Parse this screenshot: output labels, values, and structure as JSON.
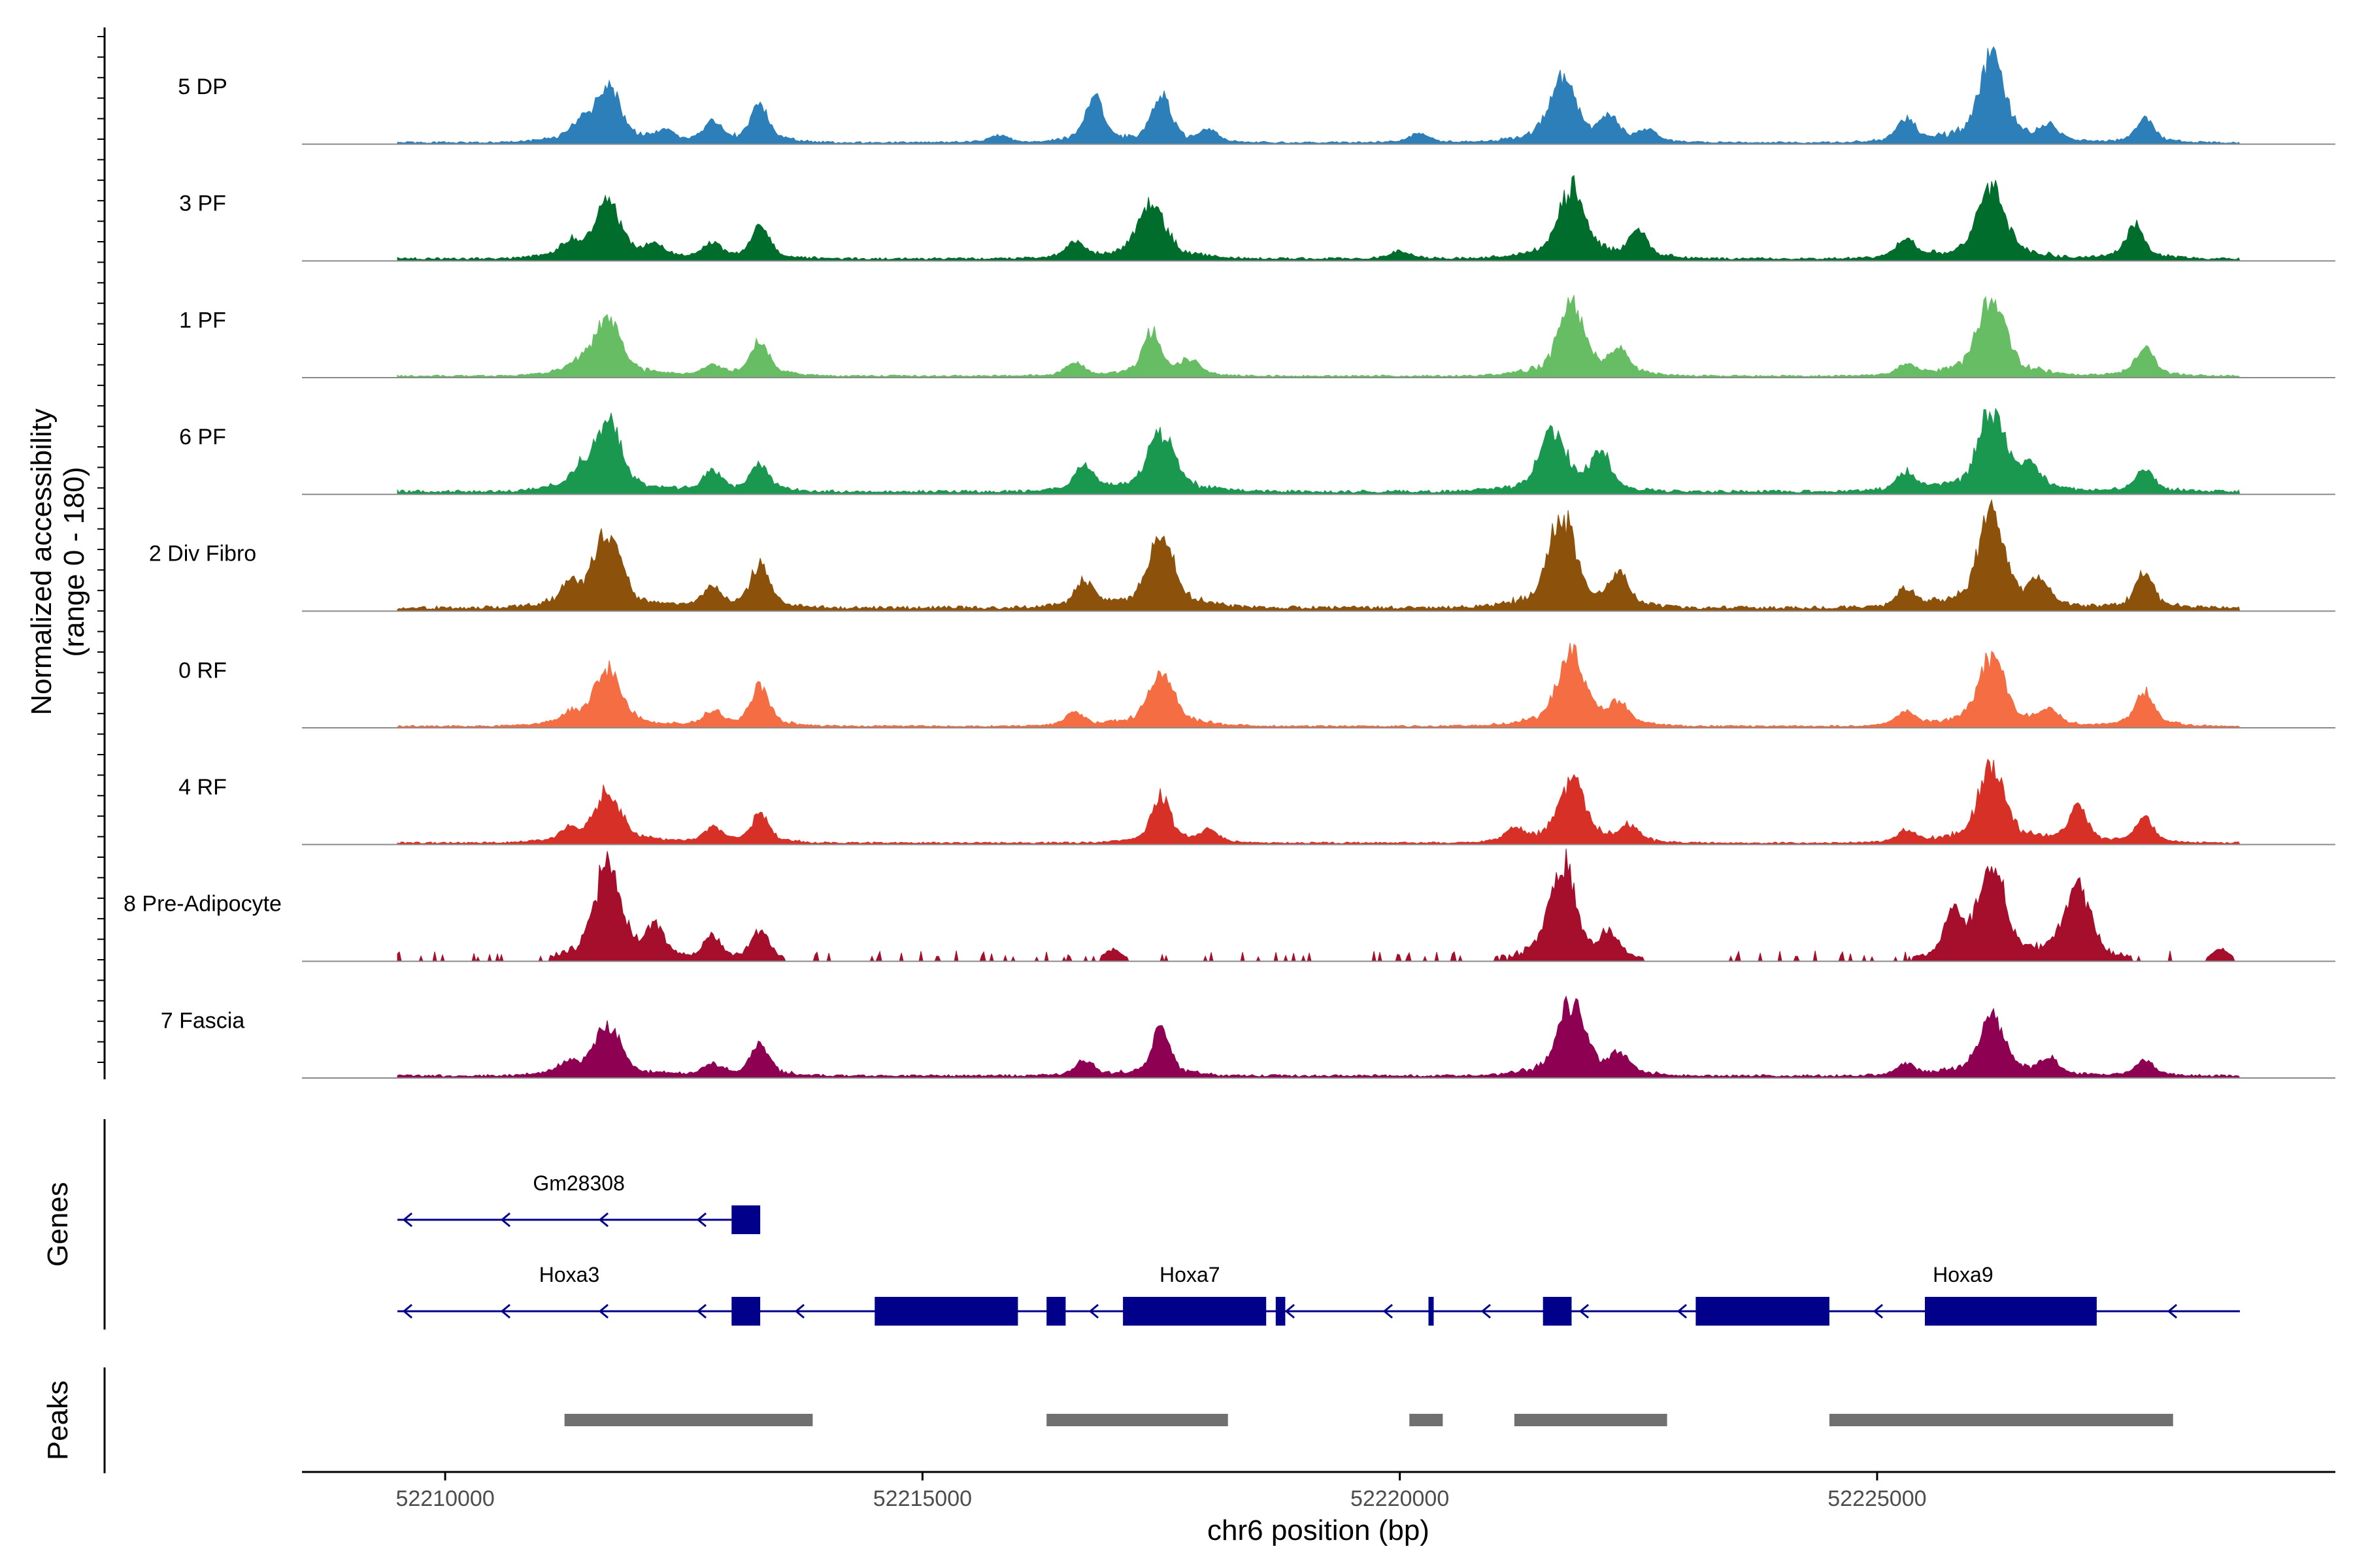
{
  "chart_data": {
    "type": "area",
    "title": "",
    "ylabel": "Normalized accessibility\n(range 0 - 180)",
    "ylabel_lines": [
      "Normalized accessibility",
      "(range 0 - 180)"
    ],
    "y_range": [
      0,
      180
    ],
    "xlabel": "chr6 position (bp)",
    "x_range": [
      52208500,
      52229800
    ],
    "data_range": [
      52209500,
      52228800
    ],
    "x_ticks": [
      52210000,
      52215000,
      52220000,
      52225000
    ],
    "x_tick_labels": [
      "52210000",
      "52215000",
      "52220000",
      "52225000"
    ],
    "tracks": [
      {
        "name": "5 DP",
        "color": "#2C7FB8",
        "baseline": 3,
        "peaks": [
          {
            "pos": 52211700,
            "h": 70
          },
          {
            "pos": 52211400,
            "h": 18
          },
          {
            "pos": 52212300,
            "h": 12
          },
          {
            "pos": 52212800,
            "h": 25
          },
          {
            "pos": 52213300,
            "h": 50
          },
          {
            "pos": 52215800,
            "h": 10
          },
          {
            "pos": 52216800,
            "h": 55
          },
          {
            "pos": 52217500,
            "h": 60
          },
          {
            "pos": 52218000,
            "h": 15
          },
          {
            "pos": 52220200,
            "h": 12
          },
          {
            "pos": 52221700,
            "h": 85
          },
          {
            "pos": 52222200,
            "h": 30
          },
          {
            "pos": 52222600,
            "h": 15
          },
          {
            "pos": 52225300,
            "h": 30
          },
          {
            "pos": 52226200,
            "h": 110
          },
          {
            "pos": 52226800,
            "h": 18
          },
          {
            "pos": 52227800,
            "h": 30
          }
        ]
      },
      {
        "name": "3 PF",
        "color": "#006D2C",
        "baseline": 4,
        "peaks": [
          {
            "pos": 52211700,
            "h": 70
          },
          {
            "pos": 52211300,
            "h": 18
          },
          {
            "pos": 52212200,
            "h": 15
          },
          {
            "pos": 52212800,
            "h": 20
          },
          {
            "pos": 52213300,
            "h": 40
          },
          {
            "pos": 52216600,
            "h": 20
          },
          {
            "pos": 52217400,
            "h": 75
          },
          {
            "pos": 52220000,
            "h": 10
          },
          {
            "pos": 52221800,
            "h": 90
          },
          {
            "pos": 52222500,
            "h": 35
          },
          {
            "pos": 52225300,
            "h": 25
          },
          {
            "pos": 52226200,
            "h": 95
          },
          {
            "pos": 52227700,
            "h": 45
          }
        ]
      },
      {
        "name": "1 PF",
        "color": "#66BD63",
        "baseline": 3,
        "peaks": [
          {
            "pos": 52211700,
            "h": 75
          },
          {
            "pos": 52211400,
            "h": 12
          },
          {
            "pos": 52212800,
            "h": 14
          },
          {
            "pos": 52213300,
            "h": 45
          },
          {
            "pos": 52216600,
            "h": 18
          },
          {
            "pos": 52217400,
            "h": 55
          },
          {
            "pos": 52217800,
            "h": 20
          },
          {
            "pos": 52221800,
            "h": 90
          },
          {
            "pos": 52222300,
            "h": 30
          },
          {
            "pos": 52225300,
            "h": 15
          },
          {
            "pos": 52226200,
            "h": 105
          },
          {
            "pos": 52227800,
            "h": 38
          }
        ]
      },
      {
        "name": "6 PF",
        "color": "#1A9850",
        "baseline": 5,
        "peaks": [
          {
            "pos": 52211700,
            "h": 90
          },
          {
            "pos": 52211400,
            "h": 20
          },
          {
            "pos": 52212800,
            "h": 25
          },
          {
            "pos": 52213300,
            "h": 35
          },
          {
            "pos": 52216700,
            "h": 35
          },
          {
            "pos": 52217500,
            "h": 75
          },
          {
            "pos": 52221600,
            "h": 80
          },
          {
            "pos": 52222100,
            "h": 50
          },
          {
            "pos": 52225300,
            "h": 25
          },
          {
            "pos": 52226200,
            "h": 105
          },
          {
            "pos": 52226600,
            "h": 30
          },
          {
            "pos": 52227800,
            "h": 30
          }
        ]
      },
      {
        "name": "2 Div Fibro",
        "color": "#8C510A",
        "baseline": 6,
        "peaks": [
          {
            "pos": 52211700,
            "h": 100
          },
          {
            "pos": 52211300,
            "h": 25
          },
          {
            "pos": 52212800,
            "h": 25
          },
          {
            "pos": 52213300,
            "h": 55
          },
          {
            "pos": 52216700,
            "h": 35
          },
          {
            "pos": 52217500,
            "h": 90
          },
          {
            "pos": 52221700,
            "h": 120
          },
          {
            "pos": 52222300,
            "h": 40
          },
          {
            "pos": 52225300,
            "h": 25
          },
          {
            "pos": 52226200,
            "h": 120
          },
          {
            "pos": 52226700,
            "h": 30
          },
          {
            "pos": 52227800,
            "h": 45
          }
        ]
      },
      {
        "name": "0 RF",
        "color": "#F46D43",
        "baseline": 3,
        "peaks": [
          {
            "pos": 52211700,
            "h": 75
          },
          {
            "pos": 52211300,
            "h": 12
          },
          {
            "pos": 52212800,
            "h": 18
          },
          {
            "pos": 52213300,
            "h": 50
          },
          {
            "pos": 52216600,
            "h": 18
          },
          {
            "pos": 52217500,
            "h": 65
          },
          {
            "pos": 52221800,
            "h": 95
          },
          {
            "pos": 52222300,
            "h": 25
          },
          {
            "pos": 52225300,
            "h": 18
          },
          {
            "pos": 52226200,
            "h": 90
          },
          {
            "pos": 52226800,
            "h": 20
          },
          {
            "pos": 52227800,
            "h": 45
          }
        ]
      },
      {
        "name": "4 RF",
        "color": "#D73027",
        "baseline": 3,
        "peaks": [
          {
            "pos": 52211700,
            "h": 65
          },
          {
            "pos": 52211300,
            "h": 14
          },
          {
            "pos": 52212800,
            "h": 20
          },
          {
            "pos": 52213300,
            "h": 35
          },
          {
            "pos": 52217500,
            "h": 60
          },
          {
            "pos": 52218000,
            "h": 15
          },
          {
            "pos": 52221200,
            "h": 15
          },
          {
            "pos": 52221800,
            "h": 80
          },
          {
            "pos": 52222400,
            "h": 20
          },
          {
            "pos": 52225300,
            "h": 15
          },
          {
            "pos": 52226200,
            "h": 100
          },
          {
            "pos": 52227100,
            "h": 45
          },
          {
            "pos": 52227800,
            "h": 32
          }
        ]
      },
      {
        "name": "8 Pre-Adipocyte",
        "color": "#A50F2B",
        "baseline": 0,
        "peaks": [
          {
            "pos": 52211700,
            "h": 125
          },
          {
            "pos": 52212200,
            "h": 38
          },
          {
            "pos": 52212800,
            "h": 30
          },
          {
            "pos": 52213300,
            "h": 40
          },
          {
            "pos": 52217000,
            "h": 15
          },
          {
            "pos": 52221700,
            "h": 125
          },
          {
            "pos": 52222200,
            "h": 30
          },
          {
            "pos": 52225800,
            "h": 55
          },
          {
            "pos": 52226200,
            "h": 125
          },
          {
            "pos": 52227100,
            "h": 95
          },
          {
            "pos": 52228600,
            "h": 15
          }
        ]
      },
      {
        "name": "7 Fascia",
        "color": "#8E0152",
        "baseline": 4,
        "peaks": [
          {
            "pos": 52211700,
            "h": 65
          },
          {
            "pos": 52211300,
            "h": 15
          },
          {
            "pos": 52212800,
            "h": 15
          },
          {
            "pos": 52213300,
            "h": 40
          },
          {
            "pos": 52216700,
            "h": 20
          },
          {
            "pos": 52217500,
            "h": 60
          },
          {
            "pos": 52221800,
            "h": 95
          },
          {
            "pos": 52222300,
            "h": 25
          },
          {
            "pos": 52225300,
            "h": 15
          },
          {
            "pos": 52226200,
            "h": 75
          },
          {
            "pos": 52226800,
            "h": 20
          },
          {
            "pos": 52227800,
            "h": 20
          }
        ]
      }
    ],
    "genes": {
      "label": "Genes",
      "color": "#00008B",
      "transcripts": [
        {
          "name": "Gm28308",
          "strand": "-",
          "start": 52209500,
          "end": 52213300,
          "exons": [
            [
              52213000,
              52213300
            ]
          ],
          "label_pos": 52211400
        },
        {
          "name": "Hoxa3",
          "strand": "-",
          "start": 52209500,
          "end": 52228800,
          "exons": [
            [
              52213000,
              52213300
            ],
            [
              52214500,
              52216000
            ],
            [
              52216300,
              52216500
            ],
            [
              52217100,
              52218600
            ],
            [
              52218700,
              52218800
            ],
            [
              52220300,
              52220350
            ],
            [
              52221500,
              52221800
            ],
            [
              52223100,
              52224500
            ],
            [
              52225500,
              52227300
            ]
          ],
          "label_pos": 52211300
        },
        {
          "name": "Hoxa7",
          "strand": "-",
          "start": 52214500,
          "end": 52218800,
          "exons": [],
          "label_pos": 52217800
        },
        {
          "name": "Hoxa9",
          "strand": "-",
          "start": 52223100,
          "end": 52227300,
          "exons": [],
          "label_pos": 52225900
        }
      ]
    },
    "peaks": {
      "label": "Peaks",
      "color": "#707070",
      "regions": [
        [
          52211250,
          52213850
        ],
        [
          52216300,
          52218200
        ],
        [
          52220100,
          52220450
        ],
        [
          52221200,
          52222800
        ],
        [
          52224500,
          52228100
        ]
      ]
    }
  }
}
